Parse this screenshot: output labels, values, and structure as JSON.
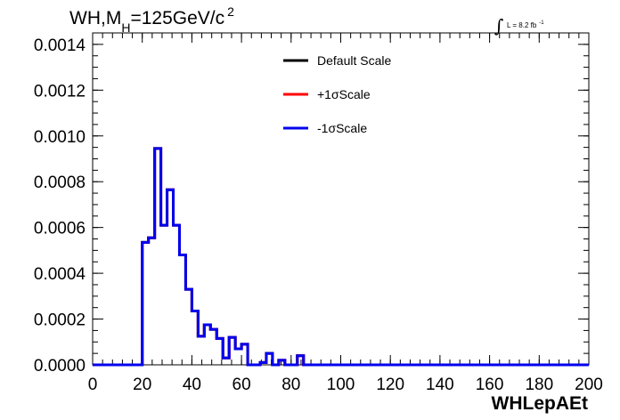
{
  "chart_data": {
    "type": "line",
    "title": "WH,M",
    "title_sub": "H",
    "title_suffix": "=125GeV/c",
    "title_sup": "2",
    "lumi": {
      "integral": "∫",
      "text": "L = 8.2 fb",
      "sup": "-1"
    },
    "xlabel": "WHLepAEt",
    "ylabel": "",
    "xlim": [
      0,
      200
    ],
    "ylim": [
      0,
      0.00145
    ],
    "x_ticks": [
      0,
      20,
      40,
      60,
      80,
      100,
      120,
      140,
      160,
      180,
      200
    ],
    "x_tick_labels": [
      "0",
      "20",
      "40",
      "60",
      "80",
      "100",
      "120",
      "140",
      "160",
      "180",
      "200"
    ],
    "y_ticks": [
      0,
      0.0002,
      0.0004,
      0.0006,
      0.0008,
      0.001,
      0.0012,
      0.0014
    ],
    "y_tick_labels": [
      "0.0000",
      "0.0002",
      "0.0004",
      "0.0006",
      "0.0008",
      "0.0010",
      "0.0012",
      "0.0014"
    ],
    "bin_edges": [
      0,
      2.5,
      5,
      7.5,
      10,
      12.5,
      15,
      17.5,
      20,
      22.5,
      25,
      27.5,
      30,
      32.5,
      35,
      37.5,
      40,
      42.5,
      45,
      47.5,
      50,
      52.5,
      55,
      57.5,
      60,
      62.5,
      65,
      67.5,
      70,
      72.5,
      75,
      77.5,
      80,
      82.5,
      85,
      87.5,
      90,
      92.5,
      95,
      97.5,
      100,
      102.5,
      105,
      107.5,
      110,
      112.5,
      115,
      117.5,
      120,
      122.5,
      125,
      127.5,
      130,
      132.5,
      135,
      137.5,
      140,
      142.5,
      145,
      147.5,
      150,
      152.5,
      155,
      157.5,
      160,
      162.5,
      165,
      167.5,
      170,
      172.5,
      175,
      177.5,
      180,
      182.5,
      185,
      187.5,
      190,
      192.5,
      195,
      197.5,
      200
    ],
    "series": [
      {
        "name": "Default Scale",
        "color": "#000000",
        "values": [
          0,
          0,
          0,
          0,
          0,
          0,
          0,
          0,
          0.000535,
          0.000555,
          0.000945,
          0.00061,
          0.000765,
          0.00061,
          0.00048,
          0.00033,
          0.000235,
          0.000125,
          0.000175,
          0.000155,
          0.000115,
          3e-05,
          0.00012,
          7e-05,
          9e-05,
          0,
          0,
          1e-05,
          5e-05,
          0,
          2e-05,
          0,
          0,
          4e-05,
          0,
          0,
          0,
          0,
          0,
          0,
          0,
          0,
          0,
          0,
          0,
          0,
          0,
          0,
          0,
          0,
          0,
          0,
          0,
          0,
          0,
          0,
          0,
          0,
          0,
          0,
          0,
          0,
          0,
          0,
          0,
          0,
          0,
          0,
          0,
          0,
          0,
          0,
          0,
          0,
          0,
          0,
          0,
          0,
          0,
          0
        ]
      },
      {
        "name": "+1σScale",
        "color": "#ff0000",
        "values": [
          0,
          0,
          0,
          0,
          0,
          0,
          0,
          0,
          0.000535,
          0.000555,
          0.000945,
          0.00061,
          0.000765,
          0.00061,
          0.00048,
          0.00033,
          0.000235,
          0.000125,
          0.000175,
          0.000155,
          0.000115,
          3e-05,
          0.00012,
          7e-05,
          9e-05,
          0,
          0,
          1e-05,
          5e-05,
          0,
          2e-05,
          0,
          0,
          4e-05,
          0,
          0,
          0,
          0,
          0,
          0,
          0,
          0,
          0,
          0,
          0,
          0,
          0,
          0,
          0,
          0,
          0,
          0,
          0,
          0,
          0,
          0,
          0,
          0,
          0,
          0,
          0,
          0,
          0,
          0,
          0,
          0,
          0,
          0,
          0,
          0,
          0,
          0,
          0,
          0,
          0,
          0,
          0,
          0,
          0,
          0
        ]
      },
      {
        "name": "-1σScale",
        "color": "#0000ee",
        "values": [
          0,
          0,
          0,
          0,
          0,
          0,
          0,
          0,
          0.000535,
          0.000555,
          0.000945,
          0.00061,
          0.000765,
          0.00061,
          0.00048,
          0.00033,
          0.000235,
          0.000125,
          0.000175,
          0.000155,
          0.000115,
          3e-05,
          0.00012,
          7e-05,
          9e-05,
          0,
          0,
          1e-05,
          5e-05,
          0,
          2e-05,
          0,
          0,
          4e-05,
          0,
          0,
          0,
          0,
          0,
          0,
          0,
          0,
          0,
          0,
          0,
          0,
          0,
          0,
          0,
          0,
          0,
          0,
          0,
          0,
          0,
          0,
          0,
          0,
          0,
          0,
          0,
          0,
          0,
          0,
          0,
          0,
          0,
          0,
          0,
          0,
          0,
          0,
          0,
          0,
          0,
          0,
          0,
          0,
          0,
          0
        ]
      }
    ],
    "legend_position": "top-center",
    "grid": false
  }
}
